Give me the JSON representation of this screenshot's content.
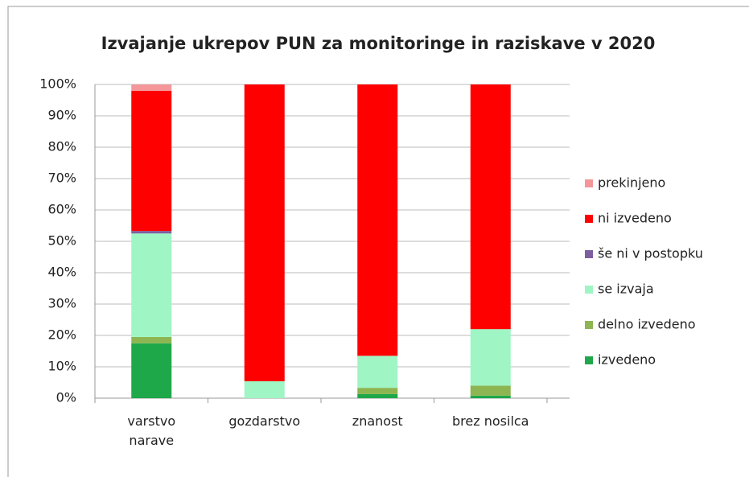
{
  "chart_data": {
    "type": "stacked_bar",
    "title": "Izvajanje ukrepov PUN za monitoringe in raziskave v 2020",
    "categories": [
      "varstvo narave",
      "gozdarstvo",
      "znanost",
      "brez nosilca"
    ],
    "series": [
      {
        "name": "izvedeno",
        "color": "#1ea84a",
        "values": [
          17.5,
          0,
          1.3,
          0.8
        ]
      },
      {
        "name": "delno izvedeno",
        "color": "#8db551",
        "values": [
          2,
          0,
          2,
          3.2
        ]
      },
      {
        "name": "se izvaja",
        "color": "#9ff5c4",
        "values": [
          33,
          5.4,
          10.2,
          18
        ]
      },
      {
        "name": "še ni v postopku",
        "color": "#7d5fa0",
        "values": [
          0.8,
          0,
          0,
          0
        ]
      },
      {
        "name": "ni izvedeno",
        "color": "#ff0000",
        "values": [
          44.7,
          94.6,
          86.5,
          78
        ]
      },
      {
        "name": "prekinjeno",
        "color": "#f4979a",
        "values": [
          2,
          0,
          0,
          0
        ]
      }
    ],
    "ylim": [
      0,
      100
    ],
    "yticks": [
      {
        "value": 0,
        "label": "0%"
      },
      {
        "value": 10,
        "label": "10%"
      },
      {
        "value": 20,
        "label": "20%"
      },
      {
        "value": 30,
        "label": "30%"
      },
      {
        "value": 40,
        "label": "40%"
      },
      {
        "value": 50,
        "label": "50%"
      },
      {
        "value": 60,
        "label": "60%"
      },
      {
        "value": 70,
        "label": "70%"
      },
      {
        "value": 80,
        "label": "80%"
      },
      {
        "value": 90,
        "label": "90%"
      },
      {
        "value": 100,
        "label": "100%"
      }
    ],
    "grid": true,
    "legend": "right"
  }
}
